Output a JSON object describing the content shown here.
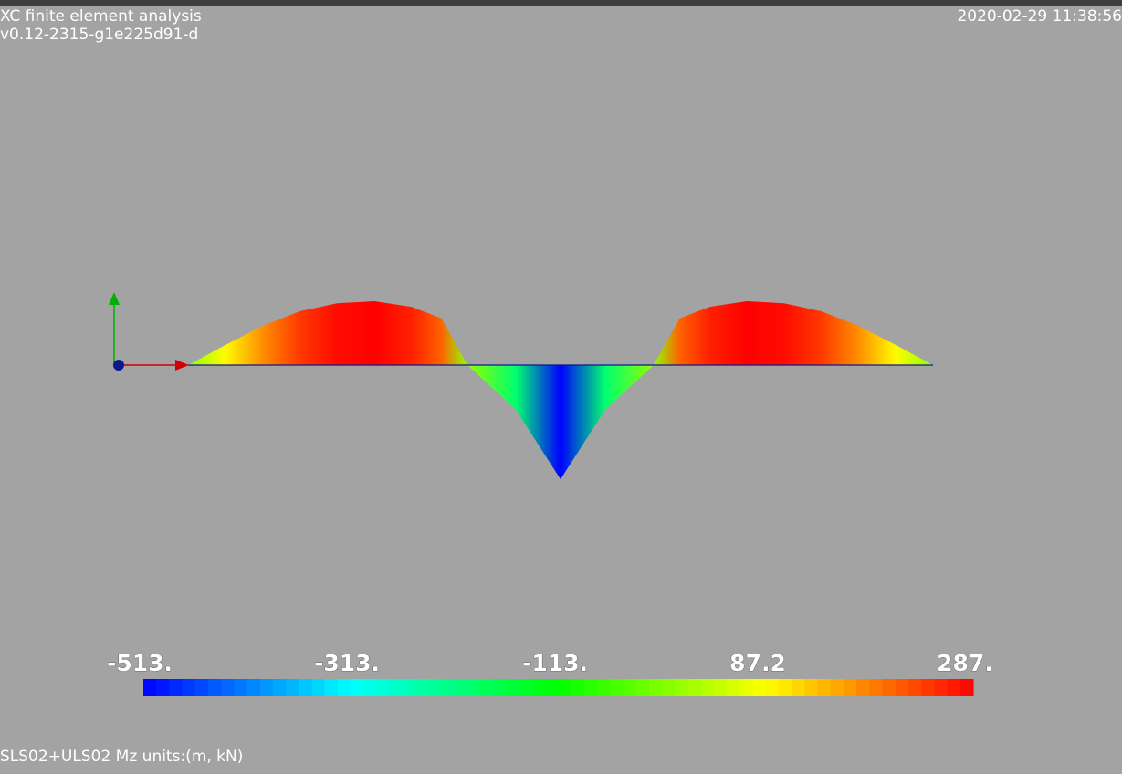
{
  "app": {
    "title": "XC finite element analysis",
    "version": "v0.12-2315-g1e225d91-d",
    "timestamp": "2020-02-29 11:38:56"
  },
  "caption": "SLS02+ULS02 Mz units:(m, kN)",
  "colors": {
    "background": "#a3a3a3",
    "positive": "#ff1400",
    "negative": "#0010ff",
    "axis_x": "#d00000",
    "axis_y": "#00b000",
    "axis_origin": "#0a1a8c"
  },
  "scalar_bar": {
    "min": -513,
    "max": 287,
    "tick_labels": [
      "-513.",
      "-313.",
      "-113.",
      "87.2",
      "287."
    ],
    "colormap": "rainbow blue-to-red",
    "segments": 64
  },
  "diagram": {
    "quantity": "Mz",
    "shape": "bending moment diagram over a two-span continuous beam",
    "stations": [
      {
        "s": 0.0,
        "value": 0
      },
      {
        "s": 0.05,
        "value": 90
      },
      {
        "s": 0.1,
        "value": 176
      },
      {
        "s": 0.15,
        "value": 242
      },
      {
        "s": 0.2,
        "value": 278
      },
      {
        "s": 0.25,
        "value": 287
      },
      {
        "s": 0.3,
        "value": 262
      },
      {
        "s": 0.34,
        "value": 210
      },
      {
        "s": 0.375,
        "value": 0
      },
      {
        "s": 0.44,
        "value": -200
      },
      {
        "s": 0.5,
        "value": -513
      },
      {
        "s": 0.56,
        "value": -200
      },
      {
        "s": 0.625,
        "value": 0
      },
      {
        "s": 0.66,
        "value": 210
      },
      {
        "s": 0.7,
        "value": 262
      },
      {
        "s": 0.75,
        "value": 287
      },
      {
        "s": 0.8,
        "value": 278
      },
      {
        "s": 0.85,
        "value": 242
      },
      {
        "s": 0.9,
        "value": 176
      },
      {
        "s": 0.95,
        "value": 90
      },
      {
        "s": 1.0,
        "value": 0
      }
    ]
  }
}
